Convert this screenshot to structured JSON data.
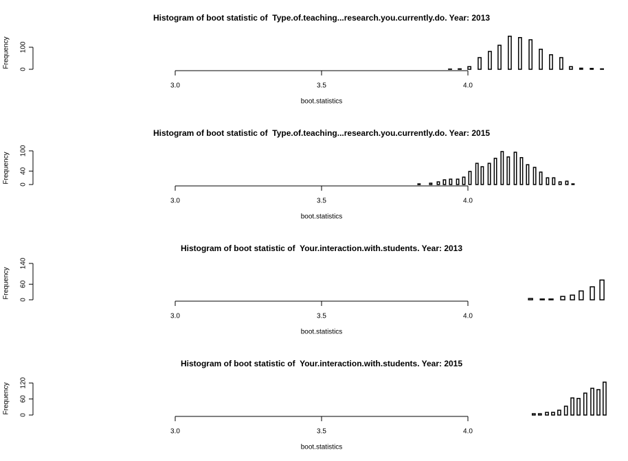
{
  "chart_data": [
    {
      "type": "histogram",
      "title": "Histogram of boot statistic of  Type.of.teaching...research.you.currently.do. Year: 2013",
      "x_label": "boot.statistics",
      "y_label": "Frequency",
      "color": "#000000",
      "bins": [
        3.934,
        3.944,
        3.967,
        3.977,
        4.0,
        4.01,
        4.035,
        4.045,
        4.07,
        4.08,
        4.103,
        4.113,
        4.138,
        4.148,
        4.173,
        4.183,
        4.209,
        4.219,
        4.244,
        4.254,
        4.279,
        4.289,
        4.314,
        4.324,
        4.347,
        4.357,
        4.382,
        4.392,
        4.418,
        4.428,
        4.453,
        4.463
      ],
      "values": [
        1,
        0,
        2,
        0,
        12,
        0,
        53,
        0,
        81,
        0,
        109,
        0,
        150,
        0,
        144,
        0,
        134,
        0,
        91,
        0,
        66,
        0,
        53,
        0,
        12,
        0,
        5,
        0,
        4,
        0,
        2
      ],
      "xlim": [
        2.5,
        4.5
      ],
      "xticks": [
        {
          "value": 3,
          "label": "3.0"
        },
        {
          "value": 3.5,
          "label": "3.5"
        },
        {
          "value": 4,
          "label": "4.0"
        }
      ],
      "ylim": [
        0,
        165
      ],
      "yticks": [
        0,
        100
      ]
    },
    {
      "type": "histogram",
      "title": "Histogram of boot statistic of  Type.of.teaching...research.you.currently.do. Year: 2015",
      "x_label": "boot.statistics",
      "y_label": "Frequency",
      "color": "#000000",
      "bins": [
        3.829,
        3.837,
        3.869,
        3.877,
        3.895,
        3.903,
        3.916,
        3.924,
        3.937,
        3.945,
        3.961,
        3.969,
        3.982,
        3.99,
        4.003,
        4.011,
        4.027,
        4.035,
        4.045,
        4.053,
        4.069,
        4.077,
        4.09,
        4.098,
        4.113,
        4.121,
        4.134,
        4.142,
        4.158,
        4.166,
        4.179,
        4.187,
        4.2,
        4.208,
        4.224,
        4.232,
        4.245,
        4.253,
        4.268,
        4.276,
        4.289,
        4.297,
        4.311,
        4.319,
        4.334,
        4.342,
        4.355,
        4.363,
        4.425
      ],
      "values": [
        2,
        0,
        4,
        0,
        8,
        0,
        14,
        0,
        16,
        0,
        16,
        0,
        22,
        0,
        39,
        0,
        63,
        0,
        53,
        0,
        63,
        0,
        78,
        0,
        98,
        0,
        82,
        0,
        96,
        0,
        80,
        0,
        59,
        0,
        51,
        0,
        37,
        0,
        20,
        0,
        20,
        0,
        8,
        0,
        10,
        0,
        2,
        0
      ],
      "xlim": [
        2.5,
        4.5
      ],
      "xticks": [
        {
          "value": 3,
          "label": "3.0"
        },
        {
          "value": 3.5,
          "label": "3.5"
        },
        {
          "value": 4,
          "label": "4.0"
        }
      ],
      "ylim": [
        0,
        108
      ],
      "yticks": [
        0,
        40,
        100
      ]
    },
    {
      "type": "histogram",
      "title": "Histogram of boot statistic of  Your.interaction.with.students. Year: 2013",
      "x_label": "boot.statistics",
      "y_label": "Frequency",
      "color": "#000000",
      "bins": [
        4.207,
        4.221,
        4.247,
        4.261,
        4.277,
        4.291,
        4.317,
        4.331,
        4.35,
        4.364,
        4.38,
        4.394,
        4.418,
        4.432,
        4.451,
        4.465,
        4.486
      ],
      "values": [
        5,
        0,
        3,
        0,
        3,
        0,
        13,
        0,
        18,
        0,
        34,
        0,
        50,
        0,
        76,
        0
      ],
      "xlim": [
        2.5,
        4.5
      ],
      "xticks": [
        {
          "value": 3,
          "label": "3.0"
        },
        {
          "value": 3.5,
          "label": "3.5"
        },
        {
          "value": 4,
          "label": "4.0"
        }
      ],
      "ylim": [
        0,
        140
      ],
      "yticks": [
        0,
        60,
        140
      ]
    },
    {
      "type": "histogram",
      "title": "Histogram of boot statistic of  Your.interaction.with.students. Year: 2015",
      "x_label": "boot.statistics",
      "y_label": "Frequency",
      "color": "#000000",
      "bins": [
        4.204,
        4.22,
        4.23,
        4.241,
        4.251,
        4.265,
        4.275,
        4.286,
        4.296,
        4.307,
        4.317,
        4.33,
        4.34,
        4.352,
        4.362,
        4.373,
        4.383,
        4.396,
        4.406,
        4.42,
        4.43,
        4.441,
        4.451,
        4.462,
        4.472
      ],
      "values": [
        0,
        5,
        0,
        5,
        0,
        10,
        0,
        10,
        0,
        18,
        0,
        33,
        0,
        64,
        0,
        62,
        0,
        82,
        0,
        100,
        0,
        95,
        0,
        123
      ],
      "xlim": [
        2.5,
        4.5
      ],
      "xticks": [
        {
          "value": 3,
          "label": "3.0"
        },
        {
          "value": 3.5,
          "label": "3.5"
        },
        {
          "value": 4,
          "label": "4.0"
        }
      ],
      "ylim": [
        0,
        136
      ],
      "yticks": [
        0,
        60,
        120
      ]
    }
  ]
}
